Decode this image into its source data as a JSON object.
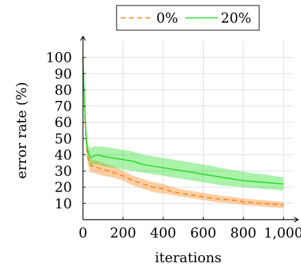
{
  "chart_data": {
    "type": "line",
    "xlabel": "iterations",
    "ylabel": "error rate (%)",
    "xlim": [
      0,
      1050
    ],
    "ylim": [
      0,
      110
    ],
    "xticks": [
      0,
      200,
      400,
      600,
      800,
      1000
    ],
    "xtick_labels": [
      "0",
      "200",
      "400",
      "600",
      "800",
      "1,000"
    ],
    "yticks": [
      10,
      20,
      30,
      40,
      50,
      60,
      70,
      80,
      90,
      100
    ],
    "ytick_labels": [
      "10",
      "20",
      "30",
      "40",
      "50",
      "60",
      "70",
      "80",
      "90",
      "100"
    ],
    "grid": true,
    "legend_position": "top",
    "series": [
      {
        "name": "0%",
        "color": "#ff7f0e",
        "style": "dashed",
        "x": [
          0,
          5,
          10,
          15,
          20,
          30,
          40,
          50,
          75,
          100,
          150,
          200,
          250,
          300,
          350,
          400,
          450,
          500,
          550,
          600,
          650,
          700,
          750,
          800,
          850,
          900,
          950,
          1000
        ],
        "y": [
          100,
          80,
          62,
          50,
          42,
          35,
          33,
          33,
          32,
          31,
          29,
          27,
          24,
          22,
          20,
          19,
          17,
          16,
          15,
          14,
          13,
          12.5,
          12,
          11,
          10.5,
          10,
          9.5,
          9
        ],
        "band_lower": [
          100,
          77,
          58,
          46,
          38,
          31,
          29,
          29,
          28,
          27,
          26,
          24,
          21,
          19,
          17,
          16,
          15,
          14,
          13,
          12,
          11,
          10.5,
          10,
          9,
          8.5,
          8,
          7.5,
          7
        ],
        "band_upper": [
          100,
          83,
          66,
          54,
          46,
          39,
          37,
          37,
          36,
          35,
          33,
          30,
          27,
          25,
          23,
          22,
          20,
          18.5,
          17.5,
          16.5,
          15.5,
          14.5,
          14,
          13,
          12.5,
          12,
          11.5,
          11
        ]
      },
      {
        "name": "20%",
        "color": "#22dd22",
        "style": "solid",
        "x": [
          0,
          5,
          10,
          15,
          20,
          30,
          40,
          50,
          75,
          100,
          150,
          200,
          250,
          300,
          350,
          400,
          450,
          500,
          550,
          600,
          650,
          700,
          750,
          800,
          850,
          900,
          950,
          1000
        ],
        "y": [
          100,
          82,
          65,
          53,
          45,
          40,
          38,
          39,
          40,
          39,
          38,
          37,
          36,
          34,
          33,
          32,
          31,
          30,
          29,
          28,
          27,
          26,
          25,
          24,
          23.5,
          23,
          22.5,
          22
        ],
        "band_lower": [
          100,
          78,
          60,
          48,
          40,
          35,
          33,
          34,
          34,
          33,
          32,
          31,
          30,
          29,
          28,
          27,
          26,
          25,
          24,
          23,
          22,
          21,
          20.5,
          20,
          19.5,
          19,
          18.5,
          18
        ],
        "band_upper": [
          100,
          86,
          70,
          58,
          50,
          45,
          44,
          45,
          45,
          45,
          44,
          43,
          42,
          40,
          39,
          38,
          37,
          36,
          35,
          34,
          33,
          31.5,
          30.5,
          29.5,
          28.5,
          28,
          27,
          26
        ]
      }
    ]
  }
}
